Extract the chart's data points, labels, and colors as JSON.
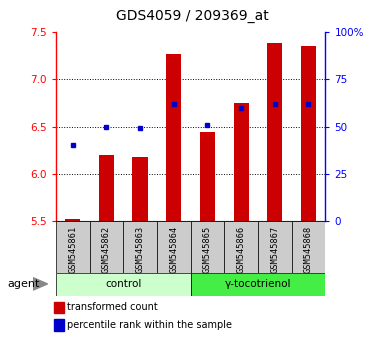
{
  "title": "GDS4059 / 209369_at",
  "samples": [
    "GSM545861",
    "GSM545862",
    "GSM545863",
    "GSM545864",
    "GSM545865",
    "GSM545866",
    "GSM545867",
    "GSM545868"
  ],
  "red_values": [
    5.52,
    6.2,
    6.18,
    7.27,
    6.44,
    6.75,
    7.38,
    7.35
  ],
  "blue_values_pct": [
    40,
    50,
    49,
    62,
    51,
    60,
    62,
    62
  ],
  "ylim_left": [
    5.5,
    7.5
  ],
  "ylim_right": [
    0,
    100
  ],
  "yticks_left": [
    5.5,
    6.0,
    6.5,
    7.0,
    7.5
  ],
  "yticks_right": [
    0,
    25,
    50,
    75,
    100
  ],
  "ytick_labels_right": [
    "0",
    "25",
    "50",
    "75",
    "100%"
  ],
  "groups": [
    {
      "label": "control",
      "indices": [
        0,
        1,
        2,
        3
      ],
      "color": "#ccffcc"
    },
    {
      "label": "γ-tocotrienol",
      "indices": [
        4,
        5,
        6,
        7
      ],
      "color": "#44ee44"
    }
  ],
  "bar_color": "#cc0000",
  "dot_color": "#0000cc",
  "bar_bottom": 5.5,
  "bar_width": 0.45,
  "agent_label": "agent",
  "legend_red": "transformed count",
  "legend_blue": "percentile rank within the sample",
  "grid_lines": [
    6.0,
    6.5,
    7.0
  ],
  "plot_bg": "#ffffff",
  "label_bg": "#cccccc"
}
